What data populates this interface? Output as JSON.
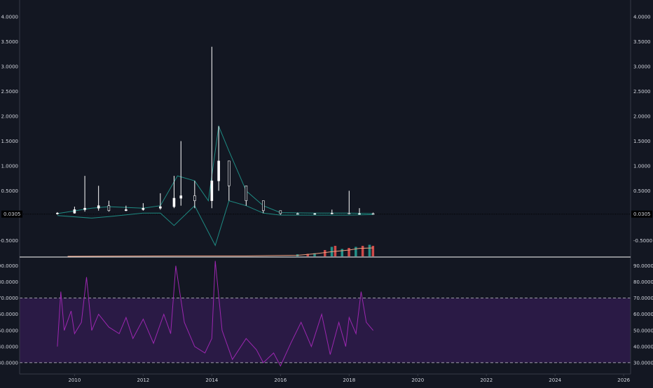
{
  "chart_data": [
    {
      "type": "candlestick",
      "title": "",
      "x_ticks": [
        "2010",
        "2012",
        "2014",
        "2016",
        "2018",
        "2020",
        "2022",
        "2024",
        "2026"
      ],
      "x_range": [
        2008.4,
        2026.2
      ],
      "y_ticks": [
        "4.0000",
        "3.5000",
        "3.0000",
        "2.5000",
        "2.0000",
        "1.5000",
        "1.0000",
        "0.5000",
        "-0.5000"
      ],
      "ylim": [
        -0.82,
        4.2
      ],
      "last_price_label": "0.0305",
      "last_price": 0.0305,
      "colors": {
        "up": "#26a69a",
        "down": "#ef5350",
        "wick": "#ffffff",
        "bands": "#1e8a82",
        "volume_ma": "#f0a080",
        "last_price_line": "#000000"
      },
      "price_series": [
        {
          "year": 2009.5,
          "open": 0.04,
          "close": 0.05,
          "high": 0.07,
          "low": 0.02
        },
        {
          "year": 2010.0,
          "open": 0.05,
          "close": 0.12,
          "high": 0.18,
          "low": 0.04
        },
        {
          "year": 2010.3,
          "open": 0.12,
          "close": 0.15,
          "high": 0.8,
          "low": 0.08
        },
        {
          "year": 2010.7,
          "open": 0.15,
          "close": 0.2,
          "high": 0.6,
          "low": 0.1
        },
        {
          "year": 2011.0,
          "open": 0.2,
          "close": 0.1,
          "high": 0.3,
          "low": 0.08
        },
        {
          "year": 2011.5,
          "open": 0.1,
          "close": 0.12,
          "high": 0.2,
          "low": 0.09
        },
        {
          "year": 2012.0,
          "open": 0.12,
          "close": 0.15,
          "high": 0.25,
          "low": 0.1
        },
        {
          "year": 2012.5,
          "open": 0.15,
          "close": 0.18,
          "high": 0.45,
          "low": 0.12
        },
        {
          "year": 2012.9,
          "open": 0.18,
          "close": 0.35,
          "high": 0.8,
          "low": 0.15
        },
        {
          "year": 2013.1,
          "open": 0.35,
          "close": 0.4,
          "high": 1.5,
          "low": 0.2
        },
        {
          "year": 2013.5,
          "open": 0.4,
          "close": 0.3,
          "high": 0.7,
          "low": 0.15
        },
        {
          "year": 2014.0,
          "open": 0.3,
          "close": 0.7,
          "high": 3.4,
          "low": 0.15
        },
        {
          "year": 2014.2,
          "open": 0.7,
          "close": 1.1,
          "high": 1.8,
          "low": 0.5
        },
        {
          "year": 2014.5,
          "open": 1.1,
          "close": 0.6,
          "high": 1.0,
          "low": 0.3
        },
        {
          "year": 2015.0,
          "open": 0.6,
          "close": 0.3,
          "high": 0.5,
          "low": 0.2
        },
        {
          "year": 2015.5,
          "open": 0.3,
          "close": 0.1,
          "high": 0.3,
          "low": 0.05
        },
        {
          "year": 2016.0,
          "open": 0.1,
          "close": 0.04,
          "high": 0.1,
          "low": 0.02
        },
        {
          "year": 2016.5,
          "open": 0.04,
          "close": 0.03,
          "high": 0.06,
          "low": 0.02
        },
        {
          "year": 2017.0,
          "open": 0.03,
          "close": 0.04,
          "high": 0.05,
          "low": 0.02
        },
        {
          "year": 2017.5,
          "open": 0.04,
          "close": 0.05,
          "high": 0.12,
          "low": 0.03
        },
        {
          "year": 2018.0,
          "open": 0.05,
          "close": 0.04,
          "high": 0.5,
          "low": 0.03
        },
        {
          "year": 2018.3,
          "open": 0.04,
          "close": 0.04,
          "high": 0.15,
          "low": 0.02
        },
        {
          "year": 2018.7,
          "open": 0.04,
          "close": 0.0305,
          "high": 0.06,
          "low": 0.02
        }
      ],
      "bollinger_upper": [
        [
          2009.5,
          0.04
        ],
        [
          2010.5,
          0.15
        ],
        [
          2011.0,
          0.18
        ],
        [
          2012.0,
          0.15
        ],
        [
          2012.5,
          0.2
        ],
        [
          2013.0,
          0.8
        ],
        [
          2013.5,
          0.7
        ],
        [
          2013.9,
          0.3
        ],
        [
          2014.2,
          1.8
        ],
        [
          2014.5,
          1.3
        ],
        [
          2015.0,
          0.5
        ],
        [
          2015.5,
          0.2
        ],
        [
          2016.0,
          0.06
        ],
        [
          2017.0,
          0.05
        ],
        [
          2018.0,
          0.05
        ],
        [
          2018.7,
          0.04
        ]
      ],
      "bollinger_lower": [
        [
          2009.5,
          0.0
        ],
        [
          2010.5,
          -0.05
        ],
        [
          2011.0,
          -0.02
        ],
        [
          2012.0,
          0.05
        ],
        [
          2012.5,
          0.05
        ],
        [
          2012.9,
          -0.2
        ],
        [
          2013.5,
          0.2
        ],
        [
          2014.1,
          -0.6
        ],
        [
          2014.5,
          0.3
        ],
        [
          2015.0,
          0.2
        ],
        [
          2015.5,
          0.05
        ],
        [
          2016.0,
          0.01
        ],
        [
          2017.0,
          0.01
        ],
        [
          2018.0,
          0.01
        ],
        [
          2018.7,
          0.02
        ]
      ],
      "volume_bars": [
        [
          2016.5,
          0.1
        ],
        [
          2016.8,
          0.12
        ],
        [
          2017.0,
          0.15
        ],
        [
          2017.3,
          0.3
        ],
        [
          2017.5,
          0.45
        ],
        [
          2017.6,
          0.5
        ],
        [
          2017.8,
          0.35
        ],
        [
          2018.0,
          0.4
        ],
        [
          2018.2,
          0.45
        ],
        [
          2018.4,
          0.5
        ],
        [
          2018.6,
          0.55
        ],
        [
          2018.7,
          0.5
        ]
      ],
      "volume_ma": [
        [
          2009.8,
          0.0
        ],
        [
          2013.0,
          0.02
        ],
        [
          2015.0,
          0.02
        ],
        [
          2016.5,
          0.05
        ],
        [
          2017.0,
          0.12
        ],
        [
          2017.5,
          0.22
        ],
        [
          2018.0,
          0.3
        ],
        [
          2018.3,
          0.38
        ],
        [
          2018.7,
          0.4
        ]
      ]
    },
    {
      "type": "line",
      "title": "",
      "y_ticks": [
        "90.0000",
        "80.0000",
        "70.0000",
        "60.0000",
        "50.0000",
        "40.0000",
        "30.0000"
      ],
      "ylim": [
        23,
        95
      ],
      "band": [
        30,
        70
      ],
      "colors": {
        "line": "#9c27b0",
        "band": "#2a1a45",
        "band_lines": "#c8c8d0"
      },
      "series": [
        {
          "x": [
            2009.5,
            2009.6,
            2009.7,
            2009.9,
            2010.0,
            2010.2,
            2010.35,
            2010.5,
            2010.7,
            2011.0,
            2011.3,
            2011.5,
            2011.7,
            2012.0,
            2012.3,
            2012.6,
            2012.8,
            2012.95,
            2013.2,
            2013.5,
            2013.8,
            2014.0,
            2014.1,
            2014.3,
            2014.6,
            2015.0,
            2015.3,
            2015.5,
            2015.8,
            2016.0,
            2016.3,
            2016.6,
            2016.9,
            2017.2,
            2017.45,
            2017.7,
            2017.9,
            2018.0,
            2018.2,
            2018.35,
            2018.5,
            2018.7
          ],
          "y": [
            40,
            74,
            50,
            62,
            48,
            55,
            83,
            50,
            60,
            52,
            48,
            58,
            45,
            57,
            42,
            60,
            48,
            90,
            55,
            40,
            36,
            45,
            93,
            50,
            32,
            45,
            38,
            30,
            36,
            28,
            42,
            55,
            40,
            60,
            35,
            55,
            40,
            58,
            48,
            74,
            55,
            50
          ]
        }
      ]
    }
  ],
  "x_axis": {
    "ticks": [
      "2010",
      "2012",
      "2014",
      "2016",
      "2018",
      "2020",
      "2022",
      "2024",
      "2026"
    ]
  }
}
